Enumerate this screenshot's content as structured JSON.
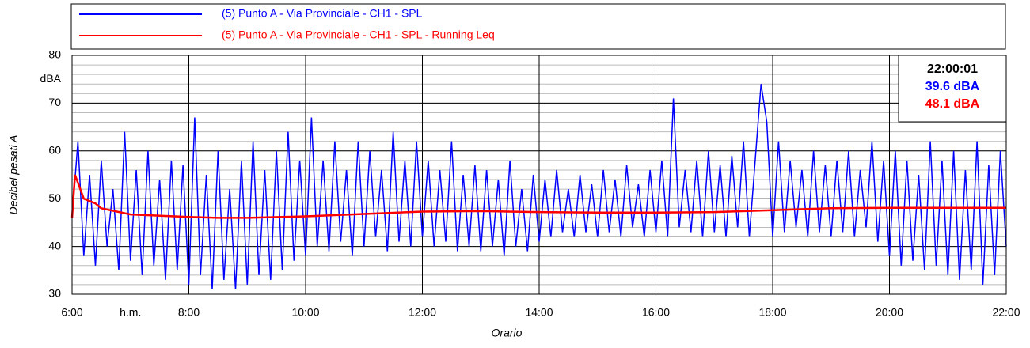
{
  "chart_data": {
    "type": "line",
    "xlabel": "Orario",
    "ylabel": "Decibel pesati A",
    "x_unit": "h.m.",
    "y_unit": "dBA",
    "xlim": [
      6,
      22
    ],
    "xticks": [
      {
        "value": 6,
        "label": "6:00"
      },
      {
        "value": 8,
        "label": "8:00"
      },
      {
        "value": 10,
        "label": "10:00"
      },
      {
        "value": 12,
        "label": "12:00"
      },
      {
        "value": 14,
        "label": "14:00"
      },
      {
        "value": 16,
        "label": "16:00"
      },
      {
        "value": 18,
        "label": "18:00"
      },
      {
        "value": 20,
        "label": "20:00"
      },
      {
        "value": 22,
        "label": "22:00"
      }
    ],
    "ylim": [
      30,
      80
    ],
    "yticks": [
      30,
      40,
      50,
      60,
      70,
      80
    ],
    "grid": true,
    "cursor_box": {
      "time": "22:00:01",
      "values": [
        "39.6 dBA",
        "48.1 dBA"
      ]
    },
    "series": [
      {
        "name": "(5) Punto A - Via Provinciale - CH1 - SPL",
        "color": "#0000ff",
        "x": [
          6,
          6.1,
          6.2,
          6.3,
          6.4,
          6.5,
          6.6,
          6.7,
          6.8,
          6.9,
          7,
          7.1,
          7.2,
          7.3,
          7.4,
          7.5,
          7.6,
          7.7,
          7.8,
          7.9,
          8,
          8.1,
          8.2,
          8.3,
          8.4,
          8.5,
          8.6,
          8.7,
          8.8,
          8.9,
          9,
          9.1,
          9.2,
          9.3,
          9.4,
          9.5,
          9.6,
          9.7,
          9.8,
          9.9,
          10,
          10.1,
          10.2,
          10.3,
          10.4,
          10.5,
          10.6,
          10.7,
          10.8,
          10.9,
          11,
          11.1,
          11.2,
          11.3,
          11.4,
          11.5,
          11.6,
          11.7,
          11.8,
          11.9,
          12,
          12.1,
          12.2,
          12.3,
          12.4,
          12.5,
          12.6,
          12.7,
          12.8,
          12.9,
          13,
          13.1,
          13.2,
          13.3,
          13.4,
          13.5,
          13.6,
          13.7,
          13.8,
          13.9,
          14,
          14.1,
          14.2,
          14.3,
          14.4,
          14.5,
          14.6,
          14.7,
          14.8,
          14.9,
          15,
          15.1,
          15.2,
          15.3,
          15.4,
          15.5,
          15.6,
          15.7,
          15.8,
          15.9,
          16,
          16.1,
          16.2,
          16.3,
          16.4,
          16.5,
          16.6,
          16.7,
          16.8,
          16.9,
          17,
          17.1,
          17.2,
          17.3,
          17.4,
          17.5,
          17.6,
          17.7,
          17.8,
          17.9,
          18,
          18.1,
          18.2,
          18.3,
          18.4,
          18.5,
          18.6,
          18.7,
          18.8,
          18.9,
          19,
          19.1,
          19.2,
          19.3,
          19.4,
          19.5,
          19.6,
          19.7,
          19.8,
          19.9,
          20,
          20.1,
          20.2,
          20.3,
          20.4,
          20.5,
          20.6,
          20.7,
          20.8,
          20.9,
          21,
          21.1,
          21.2,
          21.3,
          21.4,
          21.5,
          21.6,
          21.7,
          21.8,
          21.9,
          22
        ],
        "values": [
          46,
          62,
          38,
          55,
          36,
          58,
          40,
          52,
          35,
          64,
          37,
          56,
          34,
          60,
          36,
          54,
          33,
          58,
          35,
          57,
          32,
          67,
          34,
          55,
          31,
          60,
          33,
          52,
          31,
          58,
          32,
          62,
          34,
          56,
          33,
          60,
          35,
          64,
          37,
          58,
          38,
          67,
          40,
          58,
          39,
          62,
          41,
          56,
          38,
          62,
          40,
          60,
          42,
          56,
          39,
          64,
          41,
          58,
          40,
          62,
          42,
          58,
          40,
          56,
          41,
          62,
          39,
          55,
          40,
          57,
          39,
          56,
          40,
          54,
          38,
          58,
          40,
          52,
          39,
          55,
          41,
          54,
          42,
          56,
          43,
          52,
          42,
          55,
          43,
          53,
          42,
          56,
          43,
          54,
          42,
          57,
          44,
          53,
          42,
          56,
          43,
          58,
          42,
          71,
          44,
          56,
          43,
          58,
          42,
          60,
          43,
          57,
          42,
          59,
          44,
          62,
          42,
          58,
          74,
          66,
          42,
          62,
          43,
          58,
          44,
          56,
          42,
          60,
          43,
          57,
          42,
          58,
          43,
          60,
          42,
          56,
          44,
          62,
          41,
          58,
          38,
          60,
          36,
          58,
          37,
          55,
          35,
          62,
          36,
          58,
          34,
          60,
          33,
          56,
          35,
          62,
          32,
          57,
          34,
          60,
          40
        ]
      },
      {
        "name": "(5) Punto A - Via Provinciale - CH1 - SPL - Running Leq",
        "color": "#ff0000",
        "x": [
          6,
          6.05,
          6.2,
          6.4,
          6.5,
          7,
          8,
          8.5,
          9,
          10,
          11,
          12,
          13,
          14,
          15,
          16,
          17,
          18,
          19,
          20,
          21,
          22
        ],
        "values": [
          46,
          55,
          50,
          49,
          48,
          46.7,
          46.2,
          46,
          46,
          46.3,
          46.8,
          47.3,
          47.4,
          47.2,
          47.1,
          47.1,
          47.2,
          47.6,
          48,
          48.1,
          48.1,
          48.1
        ]
      }
    ]
  }
}
